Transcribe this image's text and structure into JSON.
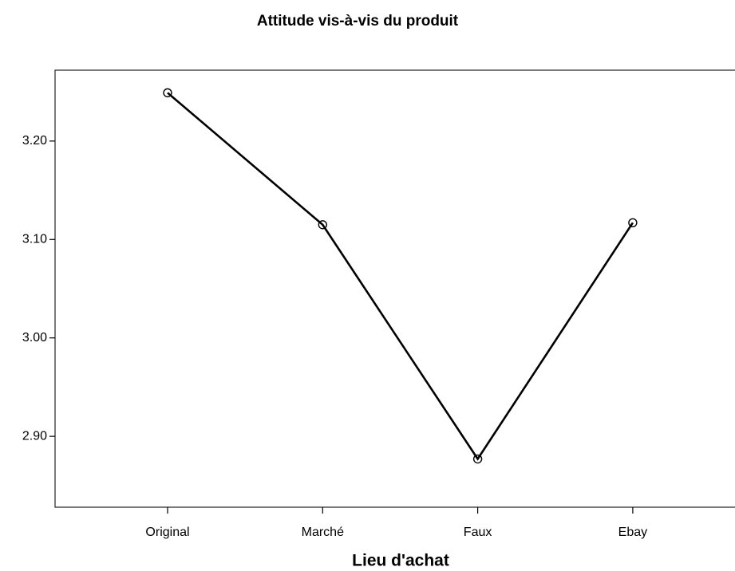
{
  "chart_data": {
    "type": "line",
    "title": "Attitude vis-à-vis du produit",
    "x_label": "Lieu d'achat",
    "categories": [
      "Original",
      "Marché",
      "Faux",
      "Ebay"
    ],
    "values": [
      3.249,
      3.115,
      2.877,
      3.117
    ],
    "color": "#000000",
    "ylim": [
      2.828,
      3.272
    ],
    "yticks": [
      {
        "value": 2.9,
        "label": "2.90"
      },
      {
        "value": 3.0,
        "label": "3.00"
      },
      {
        "value": 3.1,
        "label": "3.10"
      },
      {
        "value": 3.2,
        "label": "3.20"
      }
    ],
    "grid": false
  }
}
